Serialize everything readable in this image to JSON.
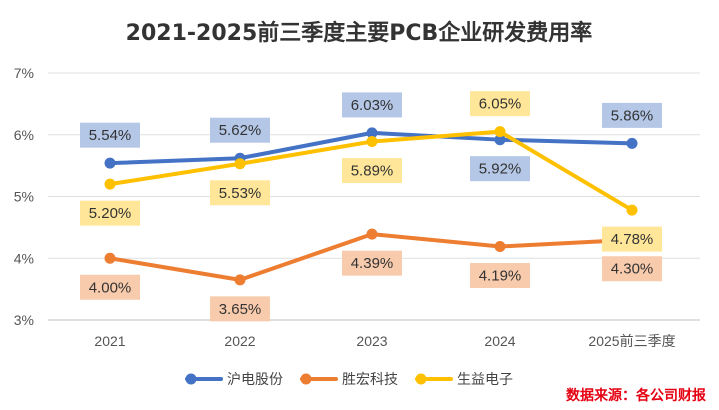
{
  "chart_data": {
    "type": "line",
    "title": "2021-2025前三季度主要PCB企业研发费用率",
    "categories": [
      "2021",
      "2022",
      "2023",
      "2024",
      "2025前三季度"
    ],
    "y_ticks": [
      "3%",
      "4%",
      "5%",
      "6%",
      "7%"
    ],
    "ylim": [
      3,
      7
    ],
    "grid": "horizontal",
    "legend_position": "bottom",
    "series": [
      {
        "name": "沪电股份",
        "color": "#4472c4",
        "label_bg": "#b4c7e7",
        "values": [
          5.54,
          5.62,
          6.03,
          5.92,
          5.86
        ],
        "labels": [
          "5.54%",
          "5.62%",
          "6.03%",
          "5.92%",
          "5.86%"
        ],
        "label_side": [
          "above",
          "above",
          "above",
          "below",
          "above"
        ]
      },
      {
        "name": "胜宏科技",
        "color": "#ed7d31",
        "label_bg": "#f8cbad",
        "values": [
          4.0,
          3.65,
          4.39,
          4.19,
          4.3
        ],
        "labels": [
          "4.00%",
          "3.65%",
          "4.39%",
          "4.19%",
          "4.30%"
        ],
        "label_side": [
          "below",
          "below",
          "below",
          "below",
          "below"
        ]
      },
      {
        "name": "生益电子",
        "color": "#ffc000",
        "label_bg": "#ffe699",
        "values": [
          5.2,
          5.53,
          5.89,
          6.05,
          4.78
        ],
        "labels": [
          "5.20%",
          "5.53%",
          "5.89%",
          "6.05%",
          "4.78%"
        ],
        "label_side": [
          "below",
          "below",
          "below",
          "above",
          "below"
        ]
      }
    ]
  },
  "source_note": "数据来源：各公司财报"
}
